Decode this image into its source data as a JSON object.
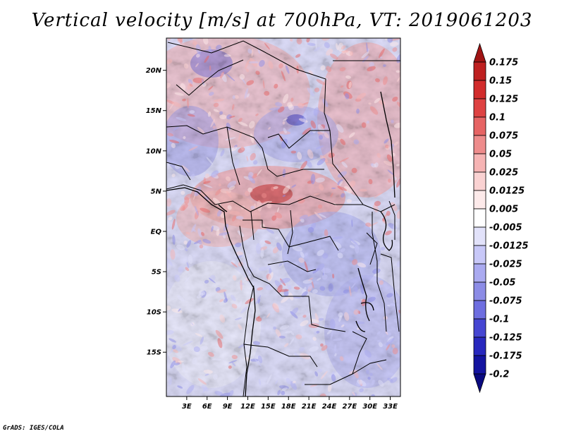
{
  "title": "Vertical velocity [m/s] at 700hPa, VT: 2019061203",
  "footer": "GrADS: IGES/COLA",
  "map": {
    "lon_range": [
      0,
      34.5
    ],
    "lat_range": [
      -20.5,
      24
    ],
    "lat_ticks": [
      {
        "value": 20,
        "label": "20N"
      },
      {
        "value": 15,
        "label": "15N"
      },
      {
        "value": 10,
        "label": "10N"
      },
      {
        "value": 5,
        "label": "5N"
      },
      {
        "value": 0,
        "label": "EQ"
      },
      {
        "value": -5,
        "label": "5S"
      },
      {
        "value": -10,
        "label": "10S"
      },
      {
        "value": -15,
        "label": "15S"
      }
    ],
    "lon_ticks": [
      {
        "value": 3,
        "label": "3E"
      },
      {
        "value": 6,
        "label": "6E"
      },
      {
        "value": 9,
        "label": "9E"
      },
      {
        "value": 12,
        "label": "12E"
      },
      {
        "value": 15,
        "label": "15E"
      },
      {
        "value": 18,
        "label": "18E"
      },
      {
        "value": 21,
        "label": "21E"
      },
      {
        "value": 24,
        "label": "24E"
      },
      {
        "value": 27,
        "label": "27E"
      },
      {
        "value": 30,
        "label": "30E"
      },
      {
        "value": 33,
        "label": "33E"
      }
    ]
  },
  "colorbar": {
    "levels": [
      "0.175",
      "0.15",
      "0.125",
      "0.1",
      "0.075",
      "0.05",
      "0.025",
      "0.0125",
      "0.005",
      "-0.005",
      "-0.0125",
      "-0.025",
      "-0.05",
      "-0.075",
      "-0.1",
      "-0.125",
      "-0.175",
      "-0.2"
    ],
    "colors": [
      "#a01414",
      "#be2020",
      "#d22c2c",
      "#de4242",
      "#e66464",
      "#ee8c8c",
      "#f6b4b4",
      "#fad2d2",
      "#fdeaea",
      "#ffffff",
      "#e2e2fa",
      "#c8c8f8",
      "#aaaaf0",
      "#8c8ce6",
      "#6e6ee0",
      "#4646d2",
      "#2828be",
      "#1414a0",
      "#0a0a80"
    ]
  }
}
